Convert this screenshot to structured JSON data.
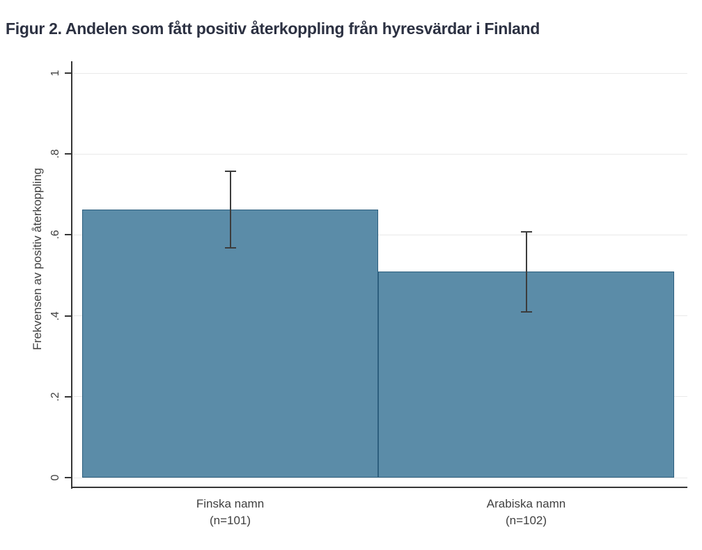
{
  "title": "Figur 2. Andelen som fått positiv återkoppling från hyresvärdar i Finland",
  "chart_data": {
    "type": "bar",
    "title": "Figur 2. Andelen som fått positiv återkoppling från hyresvärdar i Finland",
    "categories": [
      "Finska namn",
      "Arabiska namn"
    ],
    "category_sublabels": [
      "(n=101)",
      "(n=102)"
    ],
    "values": [
      0.663,
      0.51
    ],
    "error_bars": {
      "ci_low": [
        0.568,
        0.41
      ],
      "ci_high": [
        0.757,
        0.608
      ]
    },
    "xlabel": "",
    "ylabel": "Frekvensen av positiv återkoppling",
    "ylim": [
      0,
      1
    ],
    "yticks": [
      0,
      0.2,
      0.4,
      0.6,
      0.8,
      1
    ],
    "ytick_labels": [
      "0",
      ".2",
      ".4",
      ".6",
      ".8",
      "1"
    ],
    "grid": true,
    "legend": "none",
    "colors": {
      "bar_fill": "#5b8ca8",
      "bar_border": "#2d5f7e",
      "error_bar": "#3c3c3c",
      "axis": "#363636",
      "grid": "#e9e9e9",
      "tick_text": "#3f3f3f",
      "title_text": "#2c3142"
    }
  }
}
